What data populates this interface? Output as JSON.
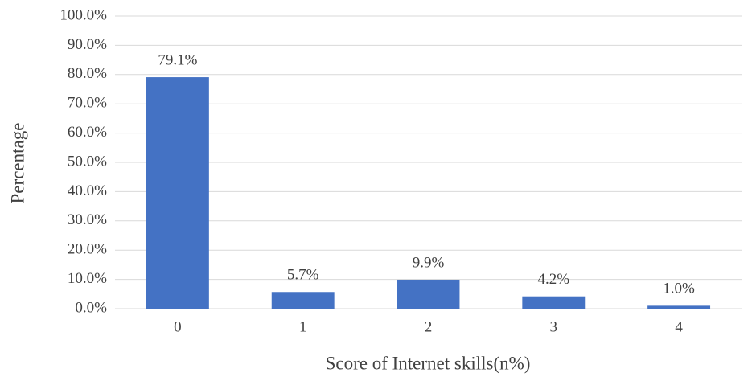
{
  "chart_data": {
    "type": "bar",
    "x_label": "Score of Internet skills(n%)",
    "y_label": "Percentage",
    "categories": [
      "0",
      "1",
      "2",
      "3",
      "4"
    ],
    "values": [
      79.1,
      5.7,
      9.9,
      4.2,
      1.0
    ],
    "value_labels": [
      "79.1%",
      "5.7%",
      "9.9%",
      "4.2%",
      "1.0%"
    ],
    "color": "#4472c4",
    "ylim": [
      0,
      100
    ],
    "yticks": [
      {
        "value": 0,
        "label": "0.0%"
      },
      {
        "value": 10,
        "label": "10.0%"
      },
      {
        "value": 20,
        "label": "20.0%"
      },
      {
        "value": 30,
        "label": "30.0%"
      },
      {
        "value": 40,
        "label": "40.0%"
      },
      {
        "value": 50,
        "label": "50.0%"
      },
      {
        "value": 60,
        "label": "60.0%"
      },
      {
        "value": 70,
        "label": "70.0%"
      },
      {
        "value": 80,
        "label": "80.0%"
      },
      {
        "value": 90,
        "label": "90.0%"
      },
      {
        "value": 100,
        "label": "100.0%"
      }
    ],
    "grid": true
  }
}
